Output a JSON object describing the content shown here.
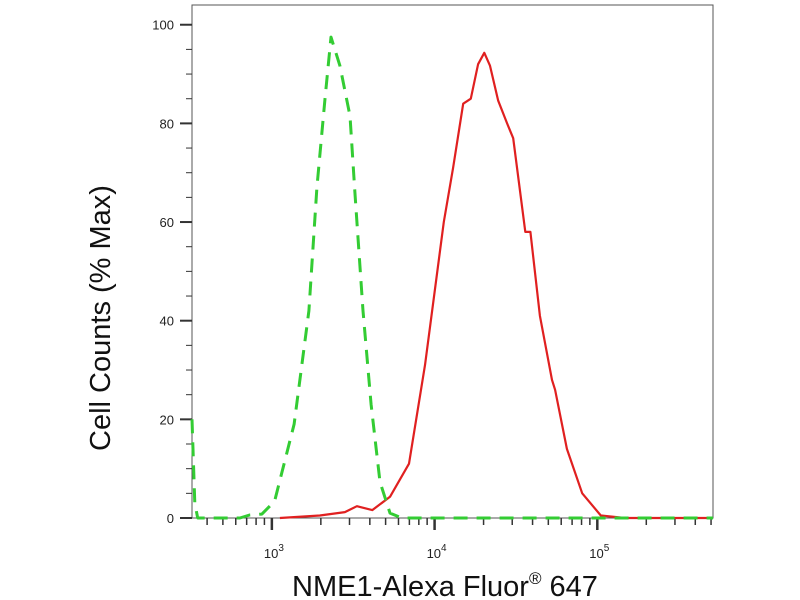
{
  "chart_data": {
    "type": "line",
    "title": "",
    "xlabel": "NME1-Alexa Fluor",
    "xlabel_superscript": "®",
    "xlabel_suffix": " 647",
    "ylabel": "Cell Counts (% Max)",
    "xscale": "log",
    "xlim": [
      323,
      514000
    ],
    "ylim": [
      0,
      104
    ],
    "grid": false,
    "legend": "none",
    "y_ticks": [
      0,
      20,
      40,
      60,
      80,
      100
    ],
    "x_ticks": [
      {
        "value": 1000,
        "base": "10",
        "exp": "3"
      },
      {
        "value": 10000,
        "base": "10",
        "exp": "4"
      },
      {
        "value": 100000,
        "base": "10",
        "exp": "5"
      }
    ],
    "series": [
      {
        "style": "solid",
        "color": "#e02020",
        "x": [
          1120,
          1970,
          2810,
          3330,
          4140,
          5320,
          6960,
          8730,
          11400,
          13000,
          15000,
          16700,
          18500,
          20200,
          21900,
          24600,
          27900,
          30400,
          36100,
          38800,
          44400,
          52700,
          55000,
          65000,
          80800,
          105000,
          148000,
          514000
        ],
        "y": [
          0,
          0.5,
          1.2,
          2.4,
          1.6,
          4.3,
          11,
          31,
          60,
          71,
          84,
          85,
          92,
          94.3,
          91.7,
          84.6,
          80,
          77,
          58,
          58,
          41,
          28,
          26,
          14,
          5,
          0.5,
          0,
          0
        ]
      },
      {
        "style": "dashed",
        "color": "#33cc33",
        "x": [
          323,
          336,
          350,
          636,
          730,
          868,
          1040,
          1370,
          1690,
          1890,
          2120,
          2310,
          2620,
          3020,
          3240,
          3630,
          4070,
          4620,
          5320,
          6300,
          514000
        ],
        "y": [
          20,
          3,
          0,
          0,
          0.6,
          0.8,
          3.4,
          19,
          42,
          67,
          85,
          97.5,
          91.7,
          81.5,
          66,
          42,
          23,
          7.3,
          1,
          0,
          0
        ]
      }
    ]
  }
}
